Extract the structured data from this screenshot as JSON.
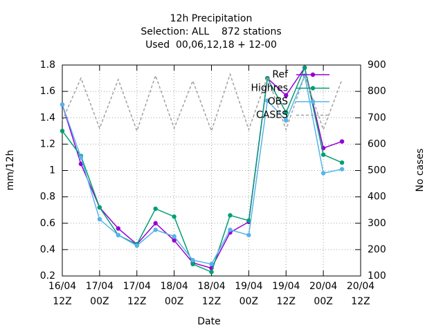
{
  "chart_data": {
    "type": "line",
    "title": [
      "12h Precipitation",
      "Selection: ALL    872 stations",
      "Used  00,06,12,18 + 12-00"
    ],
    "x_label": "Date",
    "y_label": "mm/12h",
    "y2_label": "No cases",
    "x": [
      0,
      6,
      12,
      18,
      24,
      30,
      36,
      42,
      48,
      54,
      60,
      66,
      72,
      78,
      84,
      90
    ],
    "xlim": [
      0,
      96
    ],
    "xticks": [
      {
        "value": 0,
        "label": [
          "16/04",
          "12Z"
        ]
      },
      {
        "value": 12,
        "label": [
          "17/04",
          "00Z"
        ]
      },
      {
        "value": 24,
        "label": [
          "17/04",
          "12Z"
        ]
      },
      {
        "value": 36,
        "label": [
          "18/04",
          "00Z"
        ]
      },
      {
        "value": 48,
        "label": [
          "18/04",
          "12Z"
        ]
      },
      {
        "value": 60,
        "label": [
          "19/04",
          "00Z"
        ]
      },
      {
        "value": 72,
        "label": [
          "19/04",
          "12Z"
        ]
      },
      {
        "value": 84,
        "label": [
          "20/04",
          "00Z"
        ]
      },
      {
        "value": 96,
        "label": [
          "20/04",
          "12Z"
        ]
      }
    ],
    "ylim": [
      0.2,
      1.8
    ],
    "yticks": [
      0.2,
      0.4,
      0.6,
      0.8,
      1,
      1.2,
      1.4,
      1.6,
      1.8
    ],
    "y2lim": [
      100,
      900
    ],
    "y2ticks": [
      100,
      200,
      300,
      400,
      500,
      600,
      700,
      800,
      900
    ],
    "grid": true,
    "legend": "top right",
    "series": [
      {
        "name": "Ref",
        "color": "#9400d3",
        "marker": true,
        "values": [
          1.5,
          1.05,
          0.72,
          0.56,
          0.44,
          0.6,
          0.47,
          0.3,
          0.26,
          0.53,
          0.61,
          1.7,
          1.57,
          1.78,
          1.17,
          1.22
        ]
      },
      {
        "name": "Highres",
        "color": "#009e73",
        "marker": true,
        "values": [
          1.3,
          1.11,
          0.72,
          0.51,
          0.44,
          0.71,
          0.65,
          0.29,
          0.23,
          0.66,
          0.62,
          1.7,
          1.44,
          1.78,
          1.12,
          1.06
        ]
      },
      {
        "name": "OBS",
        "color": "#56b4e9",
        "marker": true,
        "values": [
          1.5,
          1.1,
          0.63,
          0.51,
          0.43,
          0.55,
          0.5,
          0.32,
          0.29,
          0.55,
          0.51,
          1.53,
          1.38,
          1.72,
          0.98,
          1.01
        ]
      },
      {
        "name": "CASES",
        "color": "#a0a0a0",
        "dashed": true,
        "axis": "y2",
        "values": [
          690,
          850,
          660,
          845,
          650,
          860,
          660,
          840,
          650,
          865,
          655,
          855,
          655,
          860,
          655,
          845
        ]
      }
    ]
  }
}
